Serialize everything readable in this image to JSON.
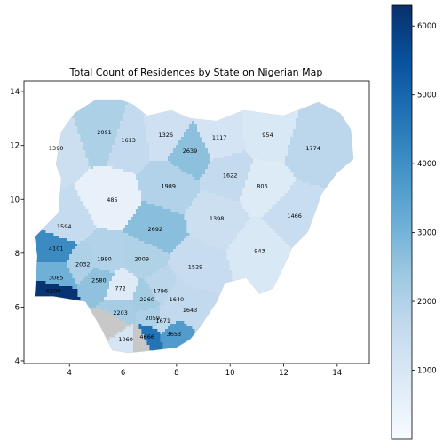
{
  "chart_data": {
    "type": "choropleth",
    "title": "Total Count of Residences by State on Nigerian Map",
    "xlabel": "",
    "ylabel": "",
    "xlim": [
      2.3,
      15.2
    ],
    "ylim": [
      3.9,
      14.4
    ],
    "x_ticks": [
      4,
      6,
      8,
      10,
      12,
      14
    ],
    "y_ticks": [
      4,
      6,
      8,
      10,
      12,
      14
    ],
    "colorbar": {
      "range": [
        0,
        6300
      ],
      "ticks": [
        1000,
        2000,
        3000,
        4000,
        5000,
        6000
      ],
      "colormap": "Blues",
      "placement": "right"
    },
    "no_data_color": "#c8c8c8",
    "regions": [
      {
        "value": 2091,
        "lon": 5.3,
        "lat": 12.5
      },
      {
        "value": 1390,
        "lon": 3.5,
        "lat": 11.9
      },
      {
        "value": 1613,
        "lon": 6.2,
        "lat": 12.2
      },
      {
        "value": 1326,
        "lon": 7.6,
        "lat": 12.4
      },
      {
        "value": 2639,
        "lon": 8.5,
        "lat": 11.8
      },
      {
        "value": 1117,
        "lon": 9.6,
        "lat": 12.3
      },
      {
        "value": 954,
        "lon": 11.4,
        "lat": 12.4
      },
      {
        "value": 1774,
        "lon": 13.1,
        "lat": 11.9
      },
      {
        "value": 485,
        "lon": 5.6,
        "lat": 10.0
      },
      {
        "value": 1989,
        "lon": 7.7,
        "lat": 10.5
      },
      {
        "value": 1622,
        "lon": 10.0,
        "lat": 10.9
      },
      {
        "value": 806,
        "lon": 11.2,
        "lat": 10.5
      },
      {
        "value": 1398,
        "lon": 9.5,
        "lat": 9.3
      },
      {
        "value": 1466,
        "lon": 12.4,
        "lat": 9.4
      },
      {
        "value": 1594,
        "lon": 3.8,
        "lat": 9.0
      },
      {
        "value": 2692,
        "lon": 7.2,
        "lat": 8.9
      },
      {
        "value": 943,
        "lon": 11.1,
        "lat": 8.1
      },
      {
        "value": 4101,
        "lon": 3.5,
        "lat": 8.2
      },
      {
        "value": 2032,
        "lon": 4.5,
        "lat": 7.6
      },
      {
        "value": 1990,
        "lon": 5.3,
        "lat": 7.8
      },
      {
        "value": 2009,
        "lon": 6.7,
        "lat": 7.8
      },
      {
        "value": 1529,
        "lon": 8.7,
        "lat": 7.5
      },
      {
        "value": 3085,
        "lon": 3.5,
        "lat": 7.1
      },
      {
        "value": 2580,
        "lon": 5.1,
        "lat": 7.0
      },
      {
        "value": 772,
        "lon": 5.9,
        "lat": 6.7
      },
      {
        "value": 1796,
        "lon": 7.4,
        "lat": 6.6
      },
      {
        "value": 1640,
        "lon": 8.0,
        "lat": 6.3
      },
      {
        "value": 2260,
        "lon": 6.9,
        "lat": 6.3
      },
      {
        "value": 6200,
        "lon": 3.4,
        "lat": 6.6
      },
      {
        "value": 1643,
        "lon": 8.5,
        "lat": 5.9
      },
      {
        "value": 2203,
        "lon": 5.9,
        "lat": 5.8
      },
      {
        "value": 2059,
        "lon": 7.1,
        "lat": 5.6
      },
      {
        "value": 1671,
        "lon": 7.5,
        "lat": 5.5
      },
      {
        "value": 3653,
        "lon": 7.9,
        "lat": 5.0
      },
      {
        "value": 1060,
        "lon": 6.1,
        "lat": 4.8
      },
      {
        "value": 4666,
        "lon": 6.9,
        "lat": 4.9
      },
      {
        "value": null,
        "lon": 6.7,
        "lat": 4.8
      },
      {
        "value": null,
        "lon": 5.7,
        "lat": 5.4
      }
    ]
  }
}
